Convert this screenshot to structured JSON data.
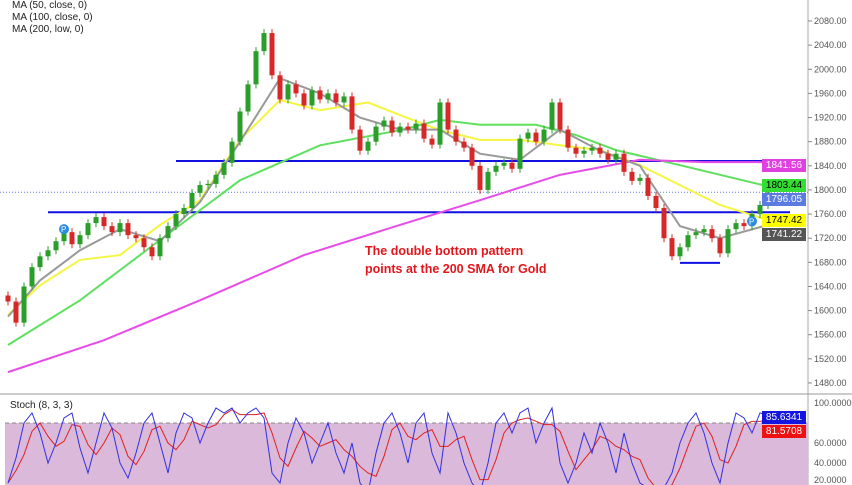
{
  "chart_data": {
    "type": "candlestick",
    "legend": [
      "MA (50, close, 0)",
      "MA (100, close, 0)",
      "MA (200, low, 0)"
    ],
    "yticks": [
      2080,
      2040,
      2000,
      1960,
      1920,
      1880,
      1840,
      1800,
      1760,
      1720,
      1680,
      1640,
      1600,
      1560,
      1520,
      1480
    ],
    "ylim": [
      1470,
      2100
    ],
    "closes": [
      1615,
      1580,
      1640,
      1672,
      1690,
      1700,
      1715,
      1730,
      1710,
      1725,
      1745,
      1755,
      1740,
      1730,
      1745,
      1725,
      1720,
      1705,
      1690,
      1720,
      1740,
      1760,
      1770,
      1795,
      1808,
      1810,
      1825,
      1845,
      1880,
      1930,
      1975,
      2030,
      2060,
      1990,
      1950,
      1975,
      1960,
      1940,
      1965,
      1950,
      1960,
      1945,
      1955,
      1900,
      1865,
      1880,
      1905,
      1915,
      1895,
      1905,
      1900,
      1910,
      1885,
      1875,
      1945,
      1900,
      1880,
      1870,
      1840,
      1800,
      1830,
      1840,
      1845,
      1835,
      1885,
      1895,
      1880,
      1900,
      1945,
      1900,
      1870,
      1860,
      1865,
      1870,
      1860,
      1850,
      1860,
      1830,
      1815,
      1820,
      1790,
      1770,
      1720,
      1690,
      1705,
      1725,
      1730,
      1735,
      1720,
      1695,
      1735,
      1745,
      1740,
      1760,
      1775,
      1796
    ],
    "ma_series": [
      {
        "name": "MA (50, close, 0)",
        "color": "#f5f542",
        "points": [
          [
            0,
            1593
          ],
          [
            4,
            1642
          ],
          [
            9,
            1684
          ],
          [
            14,
            1692
          ],
          [
            19,
            1742
          ],
          [
            24,
            1783
          ],
          [
            29,
            1883
          ],
          [
            34,
            1949
          ],
          [
            39,
            1932
          ],
          [
            45,
            1945
          ],
          [
            49,
            1924
          ],
          [
            54,
            1899
          ],
          [
            59,
            1883
          ],
          [
            64,
            1883
          ],
          [
            69,
            1874
          ],
          [
            74,
            1866
          ],
          [
            79,
            1841
          ],
          [
            84,
            1808
          ],
          [
            89,
            1775
          ],
          [
            95,
            1750
          ]
        ]
      },
      {
        "name": "MA (100, close, 0)",
        "color": "#5ee05e",
        "points": [
          [
            0,
            1543
          ],
          [
            9,
            1617
          ],
          [
            19,
            1717
          ],
          [
            29,
            1816
          ],
          [
            39,
            1874
          ],
          [
            49,
            1899
          ],
          [
            54,
            1916
          ],
          [
            59,
            1908
          ],
          [
            66,
            1908
          ],
          [
            71,
            1891
          ],
          [
            76,
            1866
          ],
          [
            84,
            1841
          ],
          [
            95,
            1806
          ]
        ]
      },
      {
        "name": "MA (200, low, 0)",
        "color": "#e84ce8",
        "points": [
          [
            0,
            1498
          ],
          [
            12,
            1551
          ],
          [
            24,
            1617
          ],
          [
            37,
            1692
          ],
          [
            49,
            1742
          ],
          [
            59,
            1783
          ],
          [
            69,
            1825
          ],
          [
            79,
            1850
          ],
          [
            87,
            1846
          ],
          [
            95,
            1846
          ]
        ]
      },
      {
        "color": "#999999",
        "points": [
          [
            0,
            1590
          ],
          [
            4,
            1650
          ],
          [
            9,
            1700
          ],
          [
            14,
            1735
          ],
          [
            19,
            1715
          ],
          [
            24,
            1780
          ],
          [
            29,
            1880
          ],
          [
            34,
            1985
          ],
          [
            39,
            1960
          ],
          [
            44,
            1920
          ],
          [
            49,
            1900
          ],
          [
            54,
            1900
          ],
          [
            59,
            1860
          ],
          [
            64,
            1850
          ],
          [
            69,
            1900
          ],
          [
            74,
            1865
          ],
          [
            79,
            1840
          ],
          [
            84,
            1740
          ],
          [
            89,
            1720
          ],
          [
            95,
            1742
          ]
        ]
      }
    ],
    "hlines": [
      {
        "price": 1848,
        "from": 21,
        "color": "#1010e0"
      },
      {
        "price": 1763,
        "from": 5,
        "color": "#1010e0"
      },
      {
        "price": 1679,
        "from": 84,
        "to": 89,
        "color": "#1010e0"
      }
    ],
    "annotation": [
      "The double bottom pattern",
      "points at the 200 SMA for Gold"
    ],
    "price_labels": [
      {
        "value": "1841.56",
        "bg": "#e040e0",
        "fg": "#fff",
        "price": 1841.56
      },
      {
        "value": "1803.44",
        "bg": "#33dd33",
        "fg": "#000",
        "price": 1808
      },
      {
        "value": "1796.05",
        "bg": "#5b7be0",
        "fg": "#fff",
        "price": 1793
      },
      {
        "value": "1747.42",
        "bg": "#ffff00",
        "fg": "#000",
        "price": 1750
      },
      {
        "value": "1741.22",
        "bg": "#555555",
        "fg": "#fff",
        "price": 1733
      }
    ],
    "stoch": {
      "label": "Stoch (8, 3, 3)",
      "yticks": [
        "100.0000",
        "60.0000",
        "40.0000",
        "20.0000"
      ],
      "k_label": "85.6341",
      "d_label": "81.5708",
      "k": [
        20,
        45,
        80,
        90,
        70,
        40,
        60,
        85,
        90,
        55,
        30,
        60,
        90,
        75,
        40,
        25,
        50,
        80,
        90,
        60,
        30,
        70,
        90,
        85,
        60,
        80,
        95,
        90,
        95,
        80,
        90,
        95,
        85,
        30,
        20,
        60,
        85,
        70,
        40,
        60,
        80,
        50,
        30,
        60,
        20,
        10,
        50,
        80,
        90,
        70,
        40,
        80,
        90,
        50,
        30,
        90,
        70,
        40,
        20,
        10,
        40,
        80,
        90,
        70,
        90,
        95,
        60,
        80,
        95,
        40,
        20,
        40,
        70,
        50,
        80,
        60,
        30,
        70,
        40,
        20,
        15,
        10,
        15,
        30,
        60,
        80,
        90,
        70,
        40,
        20,
        60,
        90,
        85,
        70,
        90,
        88
      ]
    }
  }
}
